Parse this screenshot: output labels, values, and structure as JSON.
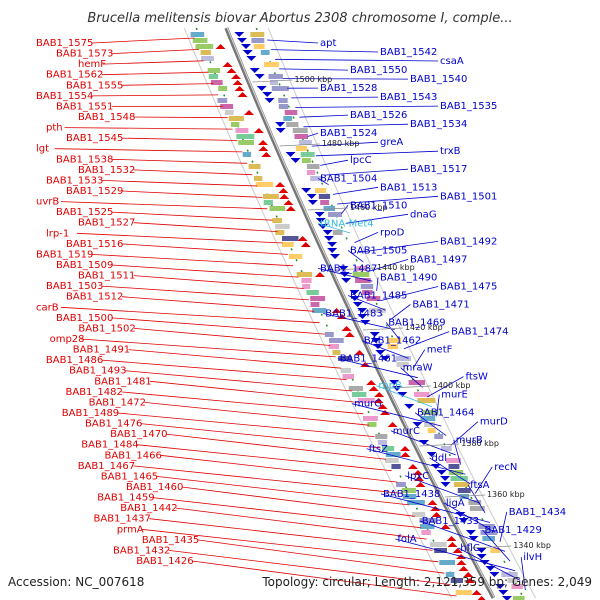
{
  "title": "Brucella melitensis biovar Abortus 2308 chromosome I, comple...",
  "accession": "Accession: NC_007618",
  "topology": "Topology: circular; Length: 2,121,359 bp; Genes: 2,049",
  "colors": {
    "forward": "#e00000",
    "reverse": "#0000cc",
    "rna": "#33bbdd",
    "axis": "#888888",
    "guide": "#2a8a2a"
  },
  "kbp_ticks": [
    {
      "label": "1500 kbp",
      "pos": 1500
    },
    {
      "label": "1480 kbp",
      "pos": 1480
    },
    {
      "label": "1460 kbp",
      "pos": 1460
    },
    {
      "label": "1440 kbp",
      "pos": 1440
    },
    {
      "label": "1420 kbp",
      "pos": 1420
    },
    {
      "label": "1400 kbp",
      "pos": 1400
    },
    {
      "label": "1380 kbp",
      "pos": 1380
    },
    {
      "label": "1360 kbp",
      "pos": 1360
    },
    {
      "label": "1340 kbp",
      "pos": 1340
    }
  ],
  "left_labels": [
    {
      "text": "BAB1_1575"
    },
    {
      "text": "BAB1_1573"
    },
    {
      "text": "hemF"
    },
    {
      "text": "BAB1_1562"
    },
    {
      "text": "BAB1_1555"
    },
    {
      "text": "BAB1_1554"
    },
    {
      "text": "BAB1_1551"
    },
    {
      "text": "BAB1_1548"
    },
    {
      "text": "pth"
    },
    {
      "text": "BAB1_1545"
    },
    {
      "text": "lgt"
    },
    {
      "text": "BAB1_1538"
    },
    {
      "text": "BAB1_1532"
    },
    {
      "text": "BAB1_1533"
    },
    {
      "text": "BAB1_1529"
    },
    {
      "text": "uvrB"
    },
    {
      "text": "BAB1_1525"
    },
    {
      "text": "BAB1_1527"
    },
    {
      "text": "lrp-1"
    },
    {
      "text": "BAB1_1516"
    },
    {
      "text": "BAB1_1519"
    },
    {
      "text": "BAB1_1509"
    },
    {
      "text": "BAB1_1511"
    },
    {
      "text": "BAB1_1503"
    },
    {
      "text": "BAB1_1512"
    },
    {
      "text": "carB"
    },
    {
      "text": "BAB1_1500"
    },
    {
      "text": "BAB1_1502"
    },
    {
      "text": "omp28"
    },
    {
      "text": "BAB1_1491"
    },
    {
      "text": "BAB1_1486"
    },
    {
      "text": "BAB1_1493"
    },
    {
      "text": "BAB1_1481"
    },
    {
      "text": "BAB1_1482"
    },
    {
      "text": "BAB1_1472"
    },
    {
      "text": "BAB1_1489"
    },
    {
      "text": "BAB1_1476"
    },
    {
      "text": "BAB1_1470"
    },
    {
      "text": "BAB1_1484"
    },
    {
      "text": "BAB1_1466"
    },
    {
      "text": "BAB1_1467"
    },
    {
      "text": "BAB1_1465"
    },
    {
      "text": "BAB1_1460"
    },
    {
      "text": "BAB1_1459"
    },
    {
      "text": "BAB1_1442"
    },
    {
      "text": "BAB1_1437"
    },
    {
      "text": "prmA"
    },
    {
      "text": "BAB1_1435"
    },
    {
      "text": "BAB1_1432"
    },
    {
      "text": "BAB1_1426"
    }
  ],
  "right_labels": [
    {
      "text": "apt",
      "type": "gene"
    },
    {
      "text": "BAB1_1542",
      "type": "gene"
    },
    {
      "text": "csaA",
      "type": "gene"
    },
    {
      "text": "BAB1_1550",
      "type": "gene"
    },
    {
      "text": "BAB1_1540",
      "type": "gene"
    },
    {
      "text": "BAB1_1528",
      "type": "gene"
    },
    {
      "text": "BAB1_1543",
      "type": "gene"
    },
    {
      "text": "BAB1_1535",
      "type": "gene"
    },
    {
      "text": "BAB1_1526",
      "type": "gene"
    },
    {
      "text": "BAB1_1534",
      "type": "gene"
    },
    {
      "text": "BAB1_1524",
      "type": "gene"
    },
    {
      "text": "greA",
      "type": "gene"
    },
    {
      "text": "trxB",
      "type": "gene"
    },
    {
      "text": "lpcC",
      "type": "gene"
    },
    {
      "text": "BAB1_1517",
      "type": "gene"
    },
    {
      "text": "BAB1_1504",
      "type": "gene"
    },
    {
      "text": "BAB1_1513",
      "type": "gene"
    },
    {
      "text": "BAB1_1501",
      "type": "gene"
    },
    {
      "text": "BAB1_1510",
      "type": "gene"
    },
    {
      "text": "dnaG",
      "type": "gene"
    },
    {
      "text": "tRNA-Met4",
      "type": "rna"
    },
    {
      "text": "rpoD",
      "type": "gene"
    },
    {
      "text": "BAB1_1492",
      "type": "gene"
    },
    {
      "text": "BAB1_1505",
      "type": "gene"
    },
    {
      "text": "BAB1_1497",
      "type": "gene"
    },
    {
      "text": "BAB1_1487",
      "type": "gene"
    },
    {
      "text": "BAB1_1490",
      "type": "gene"
    },
    {
      "text": "BAB1_1475",
      "type": "gene"
    },
    {
      "text": "BAB1_1485",
      "type": "gene"
    },
    {
      "text": "BAB1_1471",
      "type": "gene"
    },
    {
      "text": "BAB1_1483",
      "type": "gene"
    },
    {
      "text": "BAB1_1469",
      "type": "gene"
    },
    {
      "text": "BAB1_1474",
      "type": "gene"
    },
    {
      "text": "BAB1_1462",
      "type": "gene"
    },
    {
      "text": "metF",
      "type": "gene"
    },
    {
      "text": "BAB1_1461",
      "type": "gene"
    },
    {
      "text": "mraW",
      "type": "gene"
    },
    {
      "text": "ftsW",
      "type": "gene"
    },
    {
      "text": "rnpB",
      "type": "rna"
    },
    {
      "text": "murE",
      "type": "gene"
    },
    {
      "text": "murG",
      "type": "gene"
    },
    {
      "text": "BAB1_1464",
      "type": "gene"
    },
    {
      "text": "murD",
      "type": "gene"
    },
    {
      "text": "murC",
      "type": "gene"
    },
    {
      "text": "murB",
      "type": "gene"
    },
    {
      "text": "ftsZ",
      "type": "gene"
    },
    {
      "text": "ddl",
      "type": "gene"
    },
    {
      "text": "recN",
      "type": "gene"
    },
    {
      "text": "lpxC",
      "type": "gene"
    },
    {
      "text": "ftsA",
      "type": "gene"
    },
    {
      "text": "BAB1_1438",
      "type": "gene"
    },
    {
      "text": "ligA",
      "type": "gene"
    },
    {
      "text": "BAB1_1434",
      "type": "gene"
    },
    {
      "text": "BAB1_1433",
      "type": "gene"
    },
    {
      "text": "BAB1_1429",
      "type": "gene"
    },
    {
      "text": "folA",
      "type": "gene"
    },
    {
      "text": "hflC",
      "type": "gene"
    },
    {
      "text": "ilvH",
      "type": "gene"
    }
  ]
}
